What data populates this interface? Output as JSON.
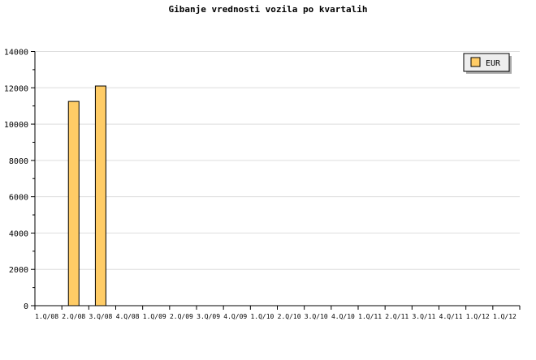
{
  "chart_data": {
    "type": "bar",
    "title": "Gibanje vrednosti vozila po kvartalih",
    "xlabel": "",
    "ylabel": "",
    "categories": [
      "1.Q/08",
      "2.Q/08",
      "3.Q/08",
      "4.Q/08",
      "1.Q/09",
      "2.Q/09",
      "3.Q/09",
      "4.Q/09",
      "1.Q/10",
      "2.Q/10",
      "3.Q/10",
      "4.Q/10",
      "1.Q/11",
      "2.Q/11",
      "3.Q/11",
      "4.Q/11",
      "1.Q/12",
      "1.Q/12"
    ],
    "series": [
      {
        "name": "EUR",
        "color": "#ffcc66",
        "values": [
          null,
          11250,
          12100,
          null,
          null,
          null,
          null,
          null,
          null,
          null,
          null,
          null,
          null,
          null,
          null,
          null,
          null,
          null
        ]
      }
    ],
    "ylim": [
      0,
      14000
    ],
    "yticks": [
      0,
      2000,
      4000,
      6000,
      8000,
      10000,
      12000,
      14000
    ],
    "grid": true,
    "legend_position": "top-right"
  }
}
